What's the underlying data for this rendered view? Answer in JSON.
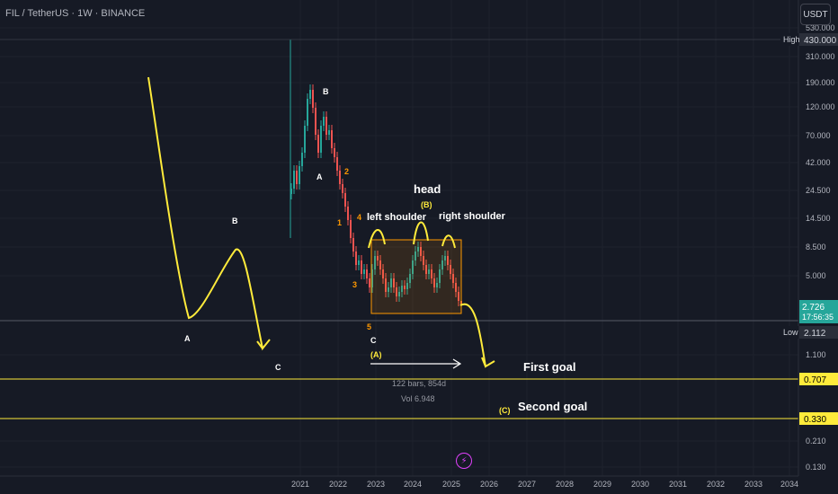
{
  "header": {
    "symbol": "FIL / TetherUS · 1W · BINANCE",
    "currency": "USDT"
  },
  "colors": {
    "background": "#161a25",
    "up": "#26a69a",
    "down": "#ef5350",
    "annotation": "#ffeb3b",
    "label_orange": "#ff9800"
  },
  "chart_data": {
    "type": "candlestick",
    "x_ticks": [
      "2021",
      "2022",
      "2023",
      "2024",
      "2025",
      "2026",
      "2027",
      "2028",
      "2029",
      "2030",
      "2031",
      "2032",
      "2033",
      "2034"
    ],
    "y_scale": "log",
    "y_ticks": [
      "530.000",
      "310.000",
      "190.000",
      "120.000",
      "70.000",
      "42.000",
      "24.500",
      "14.500",
      "8.500",
      "5.000",
      "1.100",
      "0.210",
      "0.130"
    ],
    "price_tags": [
      {
        "id": "high",
        "label": "High",
        "value": "430.000"
      },
      {
        "id": "current",
        "value": "2.726",
        "countdown": "17:56:35"
      },
      {
        "id": "low",
        "label": "Low",
        "value": "2.112"
      },
      {
        "id": "goal1",
        "value": "0.707"
      },
      {
        "id": "goal2",
        "value": "0.330"
      }
    ],
    "horizontal_lines": [
      0.707,
      0.33
    ],
    "annotations": {
      "head": "head",
      "left_shoulder": "left shoulder",
      "right_shoulder": "right shoulder",
      "first_goal": "First goal",
      "second_goal": "Second goal",
      "wave_big_A": "A",
      "wave_big_B": "B",
      "wave_big_C": "C",
      "wave_A": "A",
      "wave_B": "B",
      "wave_C": "C",
      "wave_1": "1",
      "wave_2": "2",
      "wave_3": "3",
      "wave_4": "4",
      "wave_5": "5",
      "paren_A": "(A)",
      "paren_B": "(B)",
      "paren_C": "(C)",
      "measure_bars": "122 bars, 854d",
      "measure_vol": "Vol 6.948"
    }
  }
}
